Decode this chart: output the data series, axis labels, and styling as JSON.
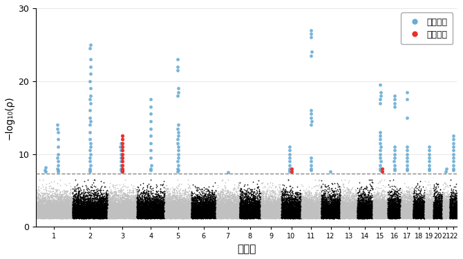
{
  "xlabel": "染色体",
  "ylabel": "−log₁₀(ρ)",
  "significance_line": 7.3,
  "ylim": [
    0,
    30
  ],
  "yticks": [
    0,
    10,
    20,
    30
  ],
  "chromosomes": [
    1,
    2,
    3,
    4,
    5,
    6,
    7,
    8,
    9,
    10,
    11,
    12,
    13,
    14,
    15,
    16,
    17,
    18,
    19,
    20,
    21,
    22
  ],
  "chr_colors_bg": [
    "#C0C0C0",
    "#000000"
  ],
  "blue_color": "#6aadd5",
  "red_color": "#e8312a",
  "background_color": "#ffffff",
  "legend_entries": [
    "既知領域",
    "新規領域"
  ],
  "sig_line_color": "#888888",
  "sig_line_style": "--",
  "sig_line_lw": 1.0,
  "bg_point_size": 1.5,
  "sig_point_size": 12,
  "chr_sizes": [
    249,
    243,
    198,
    191,
    181,
    171,
    159,
    146,
    141,
    136,
    135,
    133,
    115,
    107,
    102,
    90,
    83,
    80,
    59,
    63,
    48,
    51
  ],
  "peaks": {
    "1": {
      "blue_loci": [
        [
          0.25,
          [
            8.2,
            7.8,
            7.6
          ]
        ],
        [
          0.6,
          [
            14.0,
            13.5,
            13.0,
            12.0,
            11.0,
            10.0,
            9.5,
            9.0,
            8.5,
            8.0,
            7.8,
            7.6
          ]
        ]
      ],
      "red_loci": []
    },
    "2": {
      "blue_loci": [
        [
          0.5,
          [
            25.0,
            24.5,
            23.0,
            22.0,
            21.0,
            20.0,
            19.0,
            18.0,
            17.5,
            17.0,
            16.0,
            15.0,
            14.5,
            14.0,
            13.0,
            12.0,
            11.5,
            11.0,
            10.5,
            10.0,
            9.5,
            9.0,
            8.5,
            8.0,
            7.8,
            7.6
          ]
        ]
      ],
      "red_loci": []
    },
    "3": {
      "blue_loci": [
        [
          0.45,
          [
            11.5,
            11.0,
            10.5,
            10.0,
            9.5,
            9.0,
            8.5,
            8.0,
            7.8,
            7.6
          ]
        ]
      ],
      "red_loci": [
        [
          0.5,
          [
            12.5,
            12.0,
            11.5,
            11.0,
            10.5,
            10.0,
            9.5,
            9.0,
            8.5,
            8.0,
            7.8,
            7.6
          ]
        ]
      ]
    },
    "4": {
      "blue_loci": [
        [
          0.5,
          [
            17.5,
            16.5,
            15.5,
            14.5,
            13.5,
            12.5,
            11.5,
            10.5,
            9.5,
            8.5,
            8.0,
            7.8
          ]
        ]
      ],
      "red_loci": []
    },
    "5": {
      "blue_loci": [
        [
          0.5,
          [
            23.0,
            22.0,
            21.5,
            19.0,
            18.5,
            18.0,
            14.0,
            13.5,
            13.0,
            12.5,
            12.0,
            11.5,
            11.0,
            10.5,
            10.0,
            9.5,
            9.0,
            8.5,
            8.0,
            7.8,
            7.6
          ]
        ]
      ],
      "red_loci": []
    },
    "6": {
      "blue_loci": [],
      "red_loci": []
    },
    "7": {
      "blue_loci": [
        [
          0.5,
          [
            7.5
          ]
        ]
      ],
      "red_loci": []
    },
    "8": {
      "blue_loci": [],
      "red_loci": []
    },
    "9": {
      "blue_loci": [],
      "red_loci": []
    },
    "10": {
      "blue_loci": [
        [
          0.4,
          [
            11.0,
            10.5,
            10.0,
            9.5,
            9.0,
            8.5,
            8.0,
            7.8,
            7.6
          ]
        ]
      ],
      "red_loci": [
        [
          0.5,
          [
            8.0,
            7.6
          ]
        ]
      ]
    },
    "11": {
      "blue_loci": [
        [
          0.5,
          [
            27.0,
            26.5,
            26.0,
            24.0,
            23.5,
            16.0,
            15.5,
            15.0,
            14.5,
            14.0,
            9.5,
            9.0,
            8.5,
            8.0,
            7.8
          ]
        ]
      ],
      "red_loci": []
    },
    "12": {
      "blue_loci": [
        [
          0.5,
          [
            7.6
          ]
        ]
      ],
      "red_loci": []
    },
    "13": {
      "blue_loci": [],
      "red_loci": []
    },
    "14": {
      "blue_loci": [],
      "red_loci": []
    },
    "15": {
      "blue_loci": [
        [
          0.5,
          [
            19.5,
            18.5,
            18.0,
            17.5,
            17.0,
            13.0,
            12.5,
            12.0,
            11.5,
            11.0,
            10.5,
            10.0,
            9.5,
            9.0,
            8.5,
            8.0,
            7.8
          ]
        ]
      ],
      "red_loci": [
        [
          0.6,
          [
            8.0,
            7.6
          ]
        ]
      ]
    },
    "16": {
      "blue_loci": [
        [
          0.5,
          [
            18.0,
            17.5,
            17.0,
            16.5,
            11.0,
            10.5,
            10.0,
            9.5,
            9.0,
            8.5,
            8.0,
            7.8
          ]
        ]
      ],
      "red_loci": []
    },
    "17": {
      "blue_loci": [
        [
          0.5,
          [
            18.5,
            17.5,
            15.0,
            11.0,
            10.5,
            10.0,
            9.5,
            9.0,
            8.5,
            8.0,
            7.8
          ]
        ]
      ],
      "red_loci": []
    },
    "18": {
      "blue_loci": [],
      "red_loci": []
    },
    "19": {
      "blue_loci": [
        [
          0.5,
          [
            11.0,
            10.5,
            10.0,
            9.5,
            9.0,
            8.5,
            8.0,
            7.8
          ]
        ]
      ],
      "red_loci": []
    },
    "20": {
      "blue_loci": [],
      "red_loci": []
    },
    "21": {
      "blue_loci": [
        [
          0.5,
          [
            8.0,
            7.6
          ]
        ]
      ],
      "red_loci": []
    },
    "22": {
      "blue_loci": [
        [
          0.5,
          [
            12.5,
            12.0,
            11.5,
            11.0,
            10.5,
            10.0,
            9.5,
            9.0,
            8.5,
            8.0,
            7.8
          ]
        ]
      ],
      "red_loci": []
    }
  }
}
